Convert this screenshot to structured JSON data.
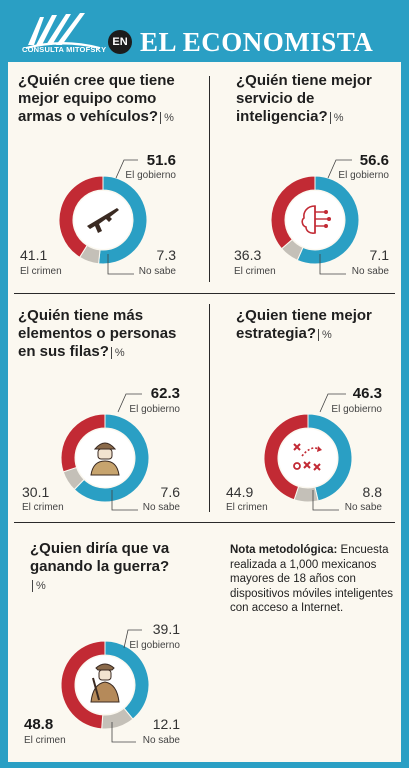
{
  "header": {
    "logo_text": "CONSULTA MITOFSKY",
    "badge": "EN",
    "title": "EL ECONOMISTA"
  },
  "colors": {
    "gobierno": "#2a9fc4",
    "crimen": "#c22a34",
    "no_sabe": "#c4c0b8",
    "frame": "#2a9fc4"
  },
  "chart_data": [
    {
      "type": "pie",
      "title": "¿Quién cree que tiene mejor equipo como armas o vehículos?",
      "unit": "%",
      "labels": [
        "El gobierno",
        "El crimen",
        "No sabe"
      ],
      "values": [
        51.6,
        41.1,
        7.3
      ],
      "icon": "rifle-icon"
    },
    {
      "type": "pie",
      "title": "¿Quién tiene mejor servicio de inteligencia?",
      "unit": "%",
      "labels": [
        "El gobierno",
        "El crimen",
        "No sabe"
      ],
      "values": [
        56.6,
        36.3,
        7.1
      ],
      "icon": "brain-circuit-icon"
    },
    {
      "type": "pie",
      "title": "¿Quién tiene más elementos o personas en sus filas?",
      "unit": "%",
      "labels": [
        "El gobierno",
        "El crimen",
        "No sabe"
      ],
      "values": [
        62.3,
        30.1,
        7.6
      ],
      "icon": "soldier-icon"
    },
    {
      "type": "pie",
      "title": "¿Quien tiene mejor estrategia?",
      "unit": "%",
      "labels": [
        "El gobierno",
        "El crimen",
        "No sabe"
      ],
      "values": [
        46.3,
        44.9,
        8.8
      ],
      "icon": "strategy-icon"
    },
    {
      "type": "pie",
      "title": "¿Quien diría que va ganando la guerra?",
      "unit": "%",
      "labels": [
        "El gobierno",
        "El crimen",
        "No sabe"
      ],
      "values": [
        39.1,
        48.8,
        12.1
      ],
      "icon": "gunman-icon"
    }
  ],
  "note": {
    "bold": "Nota metodológica:",
    "text": " Encuesta realizada a 1,000 mexicanos mayores de 18 años con dispositivos móviles inteligentes con acceso a Internet."
  }
}
